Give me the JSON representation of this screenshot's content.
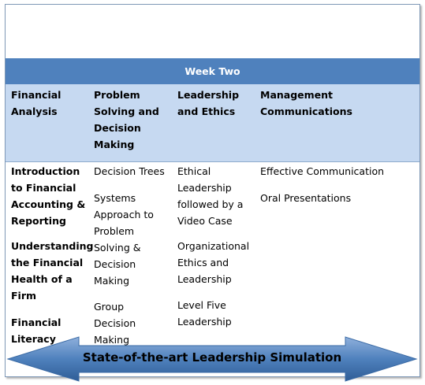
{
  "week_title": "Week Two",
  "columns": [
    {
      "header": [
        "Financial",
        "Analysis"
      ],
      "items": [
        [
          "Introduction",
          "to Financial",
          "Accounting &",
          "Reporting"
        ],
        [
          "Understanding",
          "the Financial",
          "Health of a",
          "Firm"
        ],
        [
          "Financial",
          "Literacy"
        ]
      ]
    },
    {
      "header": [
        "Problem",
        "Solving and",
        "Decision",
        "Making"
      ],
      "items": [
        [
          "Decision Trees"
        ],
        [
          "Systems",
          "Approach to",
          "Problem",
          "Solving &",
          "Decision",
          "Making"
        ],
        [
          "Group",
          "Decision",
          "Making"
        ]
      ]
    },
    {
      "header": [
        "Leadership",
        "and Ethics"
      ],
      "items": [
        [
          "Ethical",
          "Leadership",
          "followed by a",
          "Video Case"
        ],
        [
          "Organizational",
          "Ethics and",
          "Leadership"
        ],
        [
          "Level Five",
          "Leadership"
        ]
      ]
    },
    {
      "header": [
        "Management Communications"
      ],
      "items": [
        [
          "Effective Communication"
        ],
        [
          "Oral Presentations"
        ]
      ]
    }
  ],
  "banner_text": "State-of-the-art Leadership Simulation",
  "colors": {
    "week_bar": "#4f81bd",
    "header_band": "#c6d9f1",
    "arrow": "#4f81bd"
  }
}
